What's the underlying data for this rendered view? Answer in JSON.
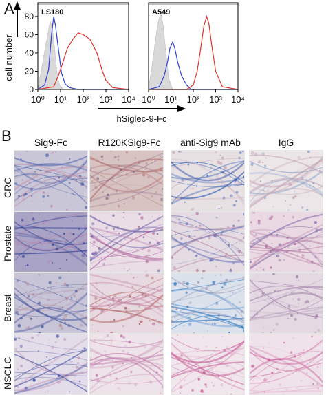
{
  "panel_a": {
    "letter": "A"
  },
  "panel_b": {
    "letter": "B",
    "columns": [
      "Sig9-Fc",
      "R120KSig9-Fc",
      "anti-Sig9 mAb",
      "IgG"
    ],
    "rows": [
      "CRC",
      "Prostate",
      "Breast",
      "NSCLC"
    ]
  },
  "colors": {
    "isotype_fill": "#d9d9d9",
    "blue_series": "#2b3fd1",
    "red_series": "#e0302a",
    "stain_blue": "#3d55a8",
    "stain_pink": "#c98bb0"
  },
  "chart_data": [
    {
      "type": "area",
      "title": "LS180",
      "xlabel": "hSiglec-9-Fc",
      "ylabel": "cell number",
      "xscale": "log",
      "xlim": [
        1,
        10000
      ],
      "xticks": [
        "10⁰",
        "10¹",
        "10²",
        "10³",
        "10⁴"
      ],
      "yticks": [
        "0",
        "20",
        "40",
        "60",
        "80"
      ],
      "ylim": [
        0,
        95
      ],
      "series": [
        {
          "color": "#bdbdbd",
          "fill": true,
          "x": [
            1,
            1.5,
            2.5,
            3.5,
            4.5,
            5.5,
            7,
            9,
            14
          ],
          "y": [
            0,
            25,
            55,
            75,
            64,
            45,
            18,
            5,
            0
          ]
        },
        {
          "color": "#2b3fd1",
          "fill": false,
          "x": [
            1,
            2,
            3,
            4,
            5,
            6,
            8,
            11,
            16,
            25,
            60,
            10000
          ],
          "y": [
            0,
            5,
            22,
            60,
            80,
            70,
            45,
            18,
            6,
            2,
            0,
            0
          ]
        },
        {
          "color": "#e0302a",
          "fill": false,
          "x": [
            1,
            5,
            8,
            12,
            20,
            35,
            60,
            100,
            200,
            400,
            700,
            1000,
            2000,
            10000
          ],
          "y": [
            0,
            3,
            15,
            28,
            45,
            55,
            62,
            60,
            55,
            40,
            20,
            10,
            2,
            0
          ]
        }
      ]
    },
    {
      "type": "area",
      "title": "A549",
      "xlabel": "hSiglec-9-Fc",
      "xscale": "log",
      "xlim": [
        1,
        10000
      ],
      "xticks": [
        "10⁰",
        "10¹",
        "10²",
        "10³",
        "10⁴"
      ],
      "ylim": [
        0,
        95
      ],
      "series": [
        {
          "color": "#bdbdbd",
          "fill": true,
          "x": [
            1,
            1.5,
            2.5,
            3.5,
            4.5,
            6,
            8,
            12
          ],
          "y": [
            0,
            30,
            70,
            85,
            70,
            40,
            12,
            0
          ]
        },
        {
          "color": "#2b3fd1",
          "fill": false,
          "x": [
            1,
            3,
            5,
            7,
            9,
            12,
            15,
            20,
            30,
            50,
            80,
            10000
          ],
          "y": [
            0,
            3,
            15,
            30,
            45,
            52,
            45,
            30,
            15,
            5,
            0,
            0
          ]
        },
        {
          "color": "#e0302a",
          "fill": false,
          "x": [
            1,
            50,
            100,
            150,
            200,
            300,
            400,
            500,
            700,
            1000,
            2000,
            10000
          ],
          "y": [
            0,
            0,
            5,
            20,
            40,
            70,
            80,
            72,
            45,
            20,
            3,
            0
          ]
        }
      ]
    }
  ]
}
